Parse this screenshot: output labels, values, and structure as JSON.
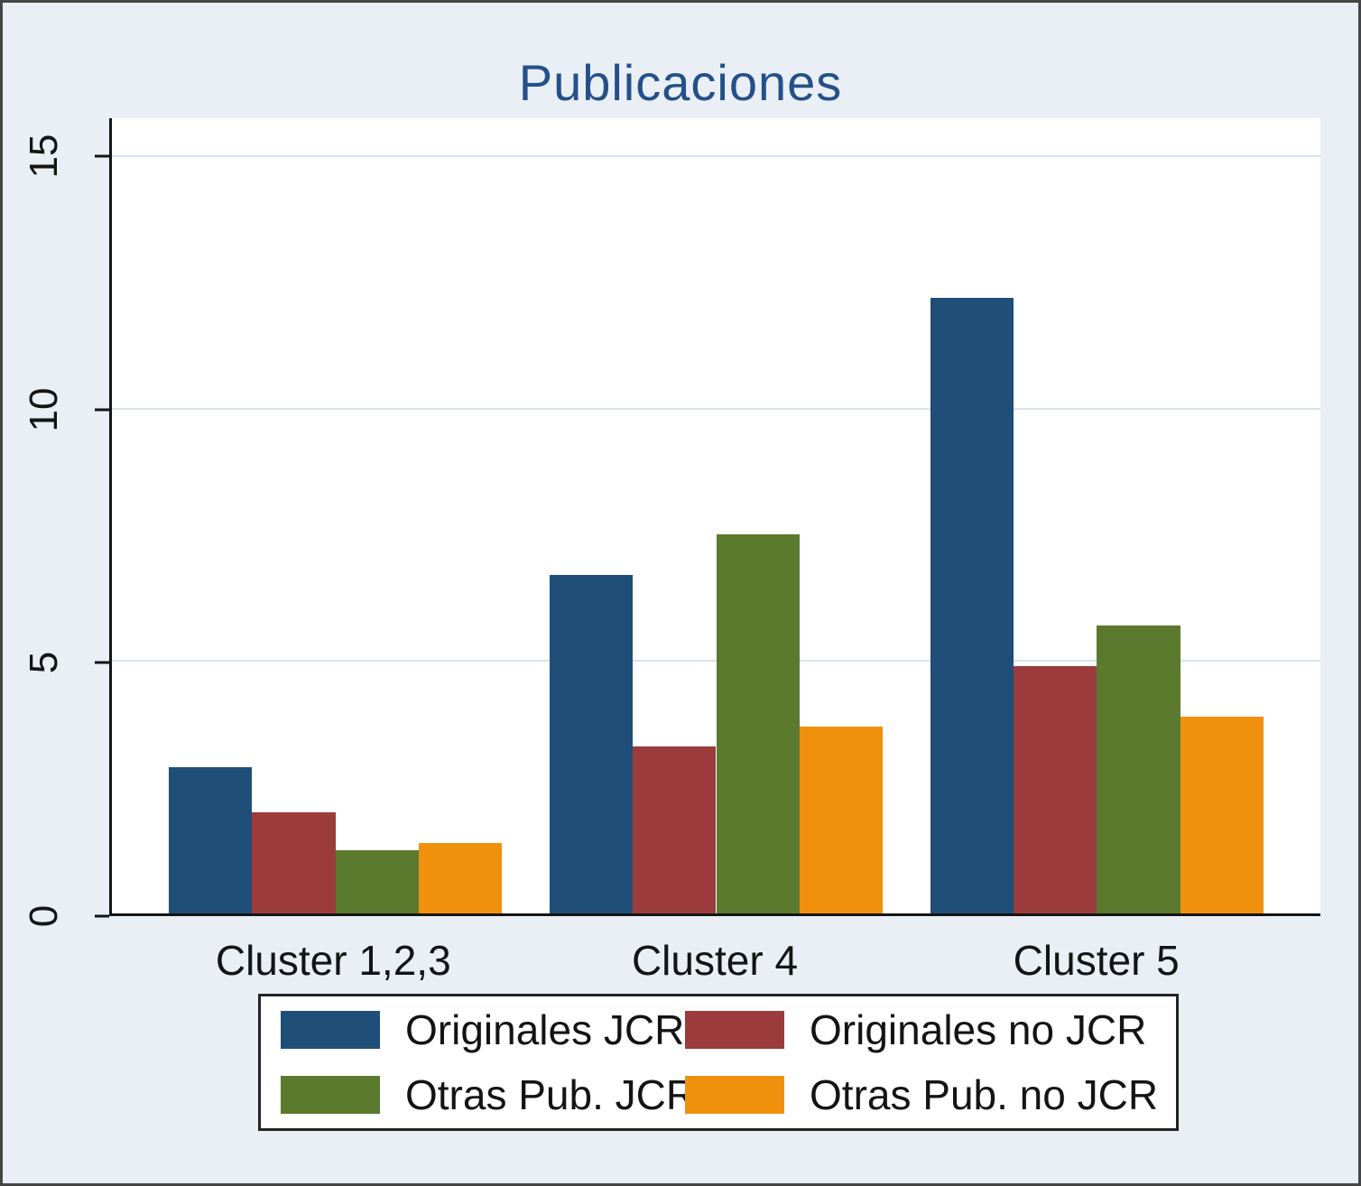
{
  "colors": {
    "figure_background": "#e9eff4",
    "plot_background": "#ffffff",
    "gridline": "#d8e3ed",
    "axis": "#141414",
    "title": "#24508a"
  },
  "chart_data": {
    "type": "bar",
    "title": "Publicaciones",
    "categories": [
      "Cluster 1,2,3",
      "Cluster 4",
      "Cluster 5"
    ],
    "series": [
      {
        "name": "Originales JCR",
        "color": "#1f4e79",
        "values": [
          2.9,
          6.7,
          12.2
        ]
      },
      {
        "name": "Originales no JCR",
        "color": "#9c3b3c",
        "values": [
          2.0,
          3.3,
          4.9
        ]
      },
      {
        "name": "Otras Pub. JCR",
        "color": "#5b7a2d",
        "values": [
          1.25,
          7.5,
          5.7
        ]
      },
      {
        "name": "Otras Pub. no JCR",
        "color": "#f0910e",
        "values": [
          1.4,
          3.7,
          3.9
        ]
      }
    ],
    "xlabel": "",
    "ylabel": "",
    "yticks": [
      0,
      5,
      10,
      15
    ],
    "ylim": [
      0,
      15.75
    ],
    "grid": true,
    "legend_position": "bottom"
  }
}
